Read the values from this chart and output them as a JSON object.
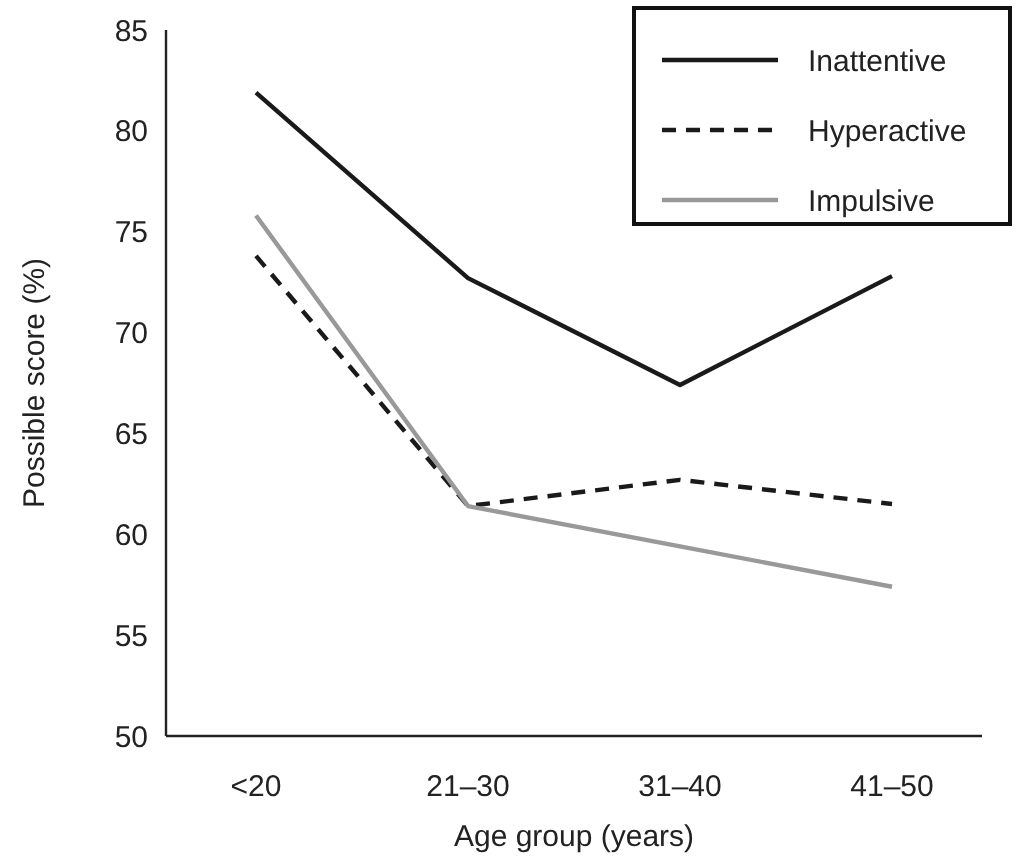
{
  "chart_data": {
    "type": "line",
    "xlabel": "Age group (years)",
    "ylabel": "Possible score (%)",
    "categories": [
      "<20",
      "21–30",
      "31–40",
      "41–50"
    ],
    "ylim": [
      50,
      85
    ],
    "yticks": [
      50,
      55,
      60,
      65,
      70,
      75,
      80,
      85
    ],
    "grid": false,
    "legend": "top right",
    "marker": "none",
    "series": [
      {
        "name": "Inattentive",
        "color": "#1a1a1a",
        "line_style": "solid",
        "values": [
          81.9,
          72.7,
          67.4,
          72.8
        ]
      },
      {
        "name": "Hyperactive",
        "color": "#1a1a1a",
        "line_style": "dashed",
        "values": [
          73.8,
          61.4,
          62.7,
          61.5
        ]
      },
      {
        "name": "Impulsive",
        "color": "#999999",
        "line_style": "solid",
        "values": [
          75.8,
          61.4,
          59.4,
          57.4
        ]
      }
    ]
  }
}
